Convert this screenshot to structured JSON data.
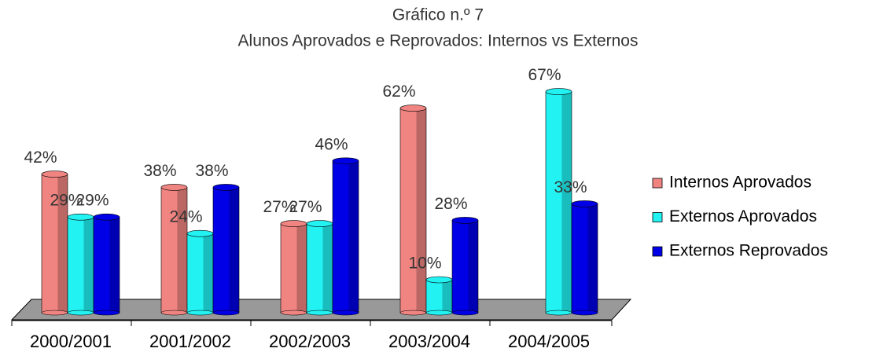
{
  "chart_data": {
    "type": "bar",
    "title": "Gráfico n.º 7",
    "subtitle": "Alunos Aprovados e Reprovados: Internos vs Externos",
    "categories": [
      "2000/2001",
      "2001/2002",
      "2002/2003",
      "2003/2004",
      "2004/2005"
    ],
    "series": [
      {
        "name": "Internos Aprovados",
        "color": "#f08481",
        "values": [
          42,
          38,
          27,
          62,
          null
        ],
        "value_labels": [
          "42%",
          "38%",
          "27%",
          "62%",
          null
        ]
      },
      {
        "name": "Externos Aprovados",
        "color": "#22f2f2",
        "values": [
          29,
          24,
          27,
          10,
          67
        ],
        "value_labels": [
          "29%",
          "24%",
          "27%",
          "10%",
          "67%"
        ]
      },
      {
        "name": "Externos Reprovados",
        "color": "#0000e6",
        "values": [
          29,
          38,
          46,
          28,
          33
        ],
        "value_labels": [
          "29%",
          "38%",
          "46%",
          "28%",
          "33%"
        ]
      }
    ],
    "legend": "right"
  }
}
